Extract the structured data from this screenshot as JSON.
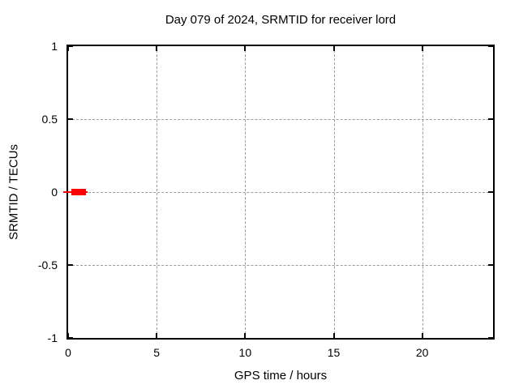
{
  "window": {
    "background": "#ffffff"
  },
  "chart_data": {
    "type": "scatter",
    "title": "Day 079 of 2024, SRMTID for receiver lord",
    "xlabel": "GPS time / hours",
    "ylabel": "SRMTID / TECUs",
    "xlim": [
      0,
      24
    ],
    "ylim": [
      -1,
      1
    ],
    "xticks": [
      {
        "value": 0,
        "label": "0"
      },
      {
        "value": 5,
        "label": "5"
      },
      {
        "value": 10,
        "label": "10"
      },
      {
        "value": 15,
        "label": "15"
      },
      {
        "value": 20,
        "label": "20"
      }
    ],
    "yticks": [
      {
        "value": -1,
        "label": "-1"
      },
      {
        "value": -0.5,
        "label": "-0.5"
      },
      {
        "value": 0,
        "label": "0"
      },
      {
        "value": 0.5,
        "label": "0.5"
      },
      {
        "value": 1,
        "label": "1"
      }
    ],
    "grid": {
      "show": true,
      "style": "dashed",
      "color": "#9c9c9c"
    },
    "legend_position": "none",
    "axis_color": "#000000",
    "series": [
      {
        "name": "SRMTID",
        "color": "#ff0000",
        "marker": "filled-square",
        "y": 0,
        "points_x": [
          0.25,
          0.35,
          0.45,
          0.55,
          0.65,
          0.75,
          0.85,
          0.95
        ],
        "cluster_x_range": [
          0.18,
          1.0
        ],
        "errorbar_x_range": [
          -0.27,
          1.1
        ]
      }
    ]
  }
}
